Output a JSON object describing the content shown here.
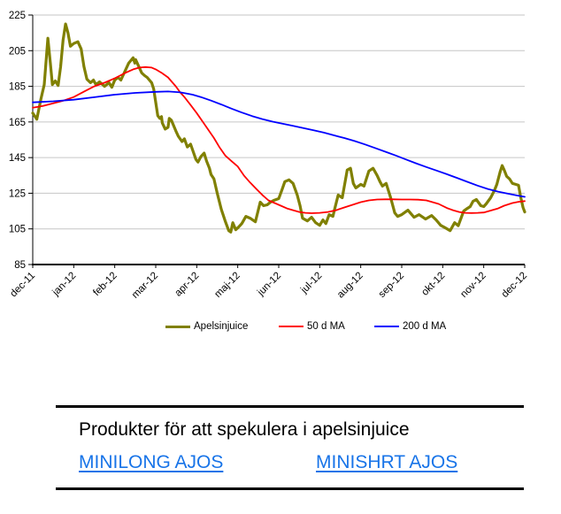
{
  "chart_data": {
    "type": "line",
    "title": "",
    "grid": true,
    "legend_position": "bottom",
    "x_axis": {
      "tick_labels": [
        "dec-11",
        "jan-12",
        "feb-12",
        "mar-12",
        "apr-12",
        "maj-12",
        "jun-12",
        "jul-12",
        "aug-12",
        "sep-12",
        "okt-12",
        "nov-12",
        "dec-12"
      ],
      "range": [
        0,
        12
      ]
    },
    "y_axis": {
      "ticks": [
        85,
        105,
        125,
        145,
        165,
        185,
        205,
        225
      ],
      "range": [
        85,
        225
      ]
    },
    "colors": {
      "gridline": "#C6C6C6",
      "axis": "#000000"
    },
    "series": [
      {
        "name": "Apelsinjuice",
        "color": "#808000",
        "width": 3.2,
        "points": [
          [
            0,
            170
          ],
          [
            0.1,
            166.5
          ],
          [
            0.2,
            178
          ],
          [
            0.28,
            186
          ],
          [
            0.37,
            212
          ],
          [
            0.43,
            198
          ],
          [
            0.48,
            186
          ],
          [
            0.55,
            188
          ],
          [
            0.62,
            185.5
          ],
          [
            0.68,
            196
          ],
          [
            0.74,
            211
          ],
          [
            0.8,
            220
          ],
          [
            0.86,
            215
          ],
          [
            0.92,
            207.5
          ],
          [
            1.0,
            209
          ],
          [
            1.1,
            210
          ],
          [
            1.18,
            206
          ],
          [
            1.25,
            196
          ],
          [
            1.32,
            189
          ],
          [
            1.41,
            187
          ],
          [
            1.48,
            188.5
          ],
          [
            1.54,
            186
          ],
          [
            1.63,
            187.5
          ],
          [
            1.75,
            185
          ],
          [
            1.86,
            187
          ],
          [
            1.93,
            184.5
          ],
          [
            2.0,
            188.5
          ],
          [
            2.08,
            190
          ],
          [
            2.15,
            188.5
          ],
          [
            2.23,
            192.5
          ],
          [
            2.34,
            198
          ],
          [
            2.45,
            201
          ],
          [
            2.49,
            198
          ],
          [
            2.51,
            200
          ],
          [
            2.58,
            196.5
          ],
          [
            2.66,
            192.5
          ],
          [
            2.73,
            191
          ],
          [
            2.79,
            190
          ],
          [
            2.9,
            187
          ],
          [
            2.95,
            183.5
          ],
          [
            3.0,
            176
          ],
          [
            3.05,
            168.5
          ],
          [
            3.1,
            167
          ],
          [
            3.14,
            168
          ],
          [
            3.16,
            164.5
          ],
          [
            3.23,
            161
          ],
          [
            3.3,
            162
          ],
          [
            3.33,
            167
          ],
          [
            3.38,
            166
          ],
          [
            3.49,
            160
          ],
          [
            3.55,
            157
          ],
          [
            3.64,
            154
          ],
          [
            3.7,
            155.5
          ],
          [
            3.77,
            151
          ],
          [
            3.85,
            152.5
          ],
          [
            3.92,
            148
          ],
          [
            3.98,
            144
          ],
          [
            4.03,
            142.5
          ],
          [
            4.1,
            145.5
          ],
          [
            4.18,
            147.5
          ],
          [
            4.24,
            143
          ],
          [
            4.31,
            139
          ],
          [
            4.35,
            135.5
          ],
          [
            4.42,
            133
          ],
          [
            4.5,
            125
          ],
          [
            4.6,
            116
          ],
          [
            4.7,
            109
          ],
          [
            4.78,
            104
          ],
          [
            4.83,
            103.2
          ],
          [
            4.88,
            108.5
          ],
          [
            4.95,
            104.5
          ],
          [
            5.02,
            106
          ],
          [
            5.1,
            108
          ],
          [
            5.2,
            112
          ],
          [
            5.3,
            111
          ],
          [
            5.43,
            109
          ],
          [
            5.55,
            120
          ],
          [
            5.63,
            118
          ],
          [
            5.72,
            118.5
          ],
          [
            5.8,
            120
          ],
          [
            5.88,
            121
          ],
          [
            6.0,
            122
          ],
          [
            6.08,
            127
          ],
          [
            6.15,
            131.5
          ],
          [
            6.25,
            132.5
          ],
          [
            6.35,
            130.5
          ],
          [
            6.45,
            124
          ],
          [
            6.52,
            118
          ],
          [
            6.58,
            111
          ],
          [
            6.7,
            109.5
          ],
          [
            6.8,
            111.5
          ],
          [
            6.9,
            108.5
          ],
          [
            7.0,
            107
          ],
          [
            7.08,
            110
          ],
          [
            7.15,
            108
          ],
          [
            7.23,
            113
          ],
          [
            7.32,
            112
          ],
          [
            7.38,
            117.5
          ],
          [
            7.45,
            124
          ],
          [
            7.55,
            122.5
          ],
          [
            7.67,
            138
          ],
          [
            7.75,
            139
          ],
          [
            7.82,
            130.5
          ],
          [
            7.88,
            128
          ],
          [
            8.0,
            130
          ],
          [
            8.08,
            129
          ],
          [
            8.2,
            137.5
          ],
          [
            8.3,
            139
          ],
          [
            8.4,
            135
          ],
          [
            8.47,
            131.5
          ],
          [
            8.53,
            129
          ],
          [
            8.62,
            130.5
          ],
          [
            8.73,
            122.5
          ],
          [
            8.83,
            114
          ],
          [
            8.9,
            112
          ],
          [
            9.0,
            113
          ],
          [
            9.15,
            115.5
          ],
          [
            9.3,
            111.5
          ],
          [
            9.42,
            113
          ],
          [
            9.58,
            110.5
          ],
          [
            9.73,
            112.5
          ],
          [
            9.84,
            110
          ],
          [
            9.95,
            107
          ],
          [
            10.07,
            105.5
          ],
          [
            10.18,
            104
          ],
          [
            10.29,
            108.5
          ],
          [
            10.38,
            106.8
          ],
          [
            10.51,
            115
          ],
          [
            10.6,
            116.5
          ],
          [
            10.67,
            117.5
          ],
          [
            10.74,
            120.5
          ],
          [
            10.82,
            121.5
          ],
          [
            10.93,
            118
          ],
          [
            11.0,
            117.5
          ],
          [
            11.06,
            119
          ],
          [
            11.17,
            122.5
          ],
          [
            11.26,
            126.5
          ],
          [
            11.32,
            130
          ],
          [
            11.4,
            137
          ],
          [
            11.45,
            140.5
          ],
          [
            11.5,
            138
          ],
          [
            11.56,
            134.5
          ],
          [
            11.63,
            133
          ],
          [
            11.7,
            130.5
          ],
          [
            11.78,
            130
          ],
          [
            11.85,
            129.5
          ],
          [
            11.9,
            123
          ],
          [
            11.96,
            117
          ],
          [
            12.0,
            114.5
          ]
        ]
      },
      {
        "name": "50 d MA",
        "color": "#FF0000",
        "width": 1.8,
        "points": [
          [
            0,
            173
          ],
          [
            0.25,
            174
          ],
          [
            0.5,
            175.5
          ],
          [
            0.75,
            177
          ],
          [
            1.0,
            179
          ],
          [
            1.25,
            182
          ],
          [
            1.5,
            185
          ],
          [
            1.75,
            187
          ],
          [
            2.0,
            189.5
          ],
          [
            2.25,
            192.5
          ],
          [
            2.45,
            194.5
          ],
          [
            2.6,
            195.5
          ],
          [
            2.75,
            195.8
          ],
          [
            2.9,
            195.5
          ],
          [
            3.0,
            194.5
          ],
          [
            3.15,
            192.5
          ],
          [
            3.3,
            190
          ],
          [
            3.49,
            185
          ],
          [
            3.6,
            181.5
          ],
          [
            3.7,
            179
          ],
          [
            3.85,
            174.5
          ],
          [
            4.0,
            170
          ],
          [
            4.15,
            165
          ],
          [
            4.3,
            160
          ],
          [
            4.42,
            156
          ],
          [
            4.55,
            151
          ],
          [
            4.7,
            146
          ],
          [
            4.85,
            143
          ],
          [
            5.0,
            140
          ],
          [
            5.15,
            135
          ],
          [
            5.3,
            131
          ],
          [
            5.45,
            127.5
          ],
          [
            5.6,
            124
          ],
          [
            5.75,
            121
          ],
          [
            5.9,
            119.5
          ],
          [
            6.05,
            118
          ],
          [
            6.2,
            116.5
          ],
          [
            6.35,
            115.5
          ],
          [
            6.5,
            114.5
          ],
          [
            6.65,
            114
          ],
          [
            6.8,
            113.8
          ],
          [
            7.0,
            114
          ],
          [
            7.2,
            114.5
          ],
          [
            7.4,
            115.5
          ],
          [
            7.6,
            117
          ],
          [
            7.8,
            118.5
          ],
          [
            8.0,
            120
          ],
          [
            8.2,
            121
          ],
          [
            8.4,
            121.5
          ],
          [
            8.6,
            121.6
          ],
          [
            8.8,
            121.6
          ],
          [
            9.0,
            121.5
          ],
          [
            9.2,
            121.5
          ],
          [
            9.4,
            121.4
          ],
          [
            9.6,
            121
          ],
          [
            9.75,
            120
          ],
          [
            9.9,
            119
          ],
          [
            10.1,
            116.7
          ],
          [
            10.25,
            115.5
          ],
          [
            10.4,
            114.5
          ],
          [
            10.55,
            114
          ],
          [
            10.7,
            113.9
          ],
          [
            10.85,
            114
          ],
          [
            11.0,
            114.2
          ],
          [
            11.2,
            115.5
          ],
          [
            11.35,
            116.5
          ],
          [
            11.5,
            118
          ],
          [
            11.7,
            119.5
          ],
          [
            11.85,
            120.2
          ],
          [
            12,
            120.6
          ]
        ]
      },
      {
        "name": "200 d MA",
        "color": "#0000FF",
        "width": 1.8,
        "points": [
          [
            0,
            176
          ],
          [
            0.5,
            176.6
          ],
          [
            1.0,
            177.5
          ],
          [
            1.5,
            178.9
          ],
          [
            2.0,
            180.3
          ],
          [
            2.5,
            181.3
          ],
          [
            3.0,
            181.9
          ],
          [
            3.3,
            182.1
          ],
          [
            3.6,
            181.6
          ],
          [
            3.9,
            180.3
          ],
          [
            4.1,
            179
          ],
          [
            4.35,
            177
          ],
          [
            4.6,
            174.8
          ],
          [
            4.85,
            172.5
          ],
          [
            5.1,
            170.3
          ],
          [
            5.35,
            168.3
          ],
          [
            5.6,
            166.6
          ],
          [
            5.85,
            165.2
          ],
          [
            6.1,
            164
          ],
          [
            6.35,
            162.8
          ],
          [
            6.6,
            161.6
          ],
          [
            6.85,
            160.3
          ],
          [
            7.1,
            159
          ],
          [
            7.35,
            157.5
          ],
          [
            7.6,
            156
          ],
          [
            7.85,
            154.3
          ],
          [
            8.1,
            152.4
          ],
          [
            8.35,
            150.4
          ],
          [
            8.6,
            148.3
          ],
          [
            8.85,
            146.2
          ],
          [
            9.1,
            144
          ],
          [
            9.35,
            141.8
          ],
          [
            9.6,
            139.7
          ],
          [
            9.85,
            137.7
          ],
          [
            10.1,
            135.7
          ],
          [
            10.35,
            133.6
          ],
          [
            10.6,
            131.4
          ],
          [
            10.85,
            129.3
          ],
          [
            11.1,
            127.4
          ],
          [
            11.35,
            125.9
          ],
          [
            11.6,
            124.7
          ],
          [
            11.85,
            123.6
          ],
          [
            12,
            123
          ]
        ]
      }
    ]
  },
  "products": {
    "heading": "Produkter för att spekulera i apelsinjuice",
    "link_color": "#1874E8",
    "links": [
      {
        "label": "MINILONG AJOS"
      },
      {
        "label": "MINISHRT AJOS"
      }
    ]
  }
}
